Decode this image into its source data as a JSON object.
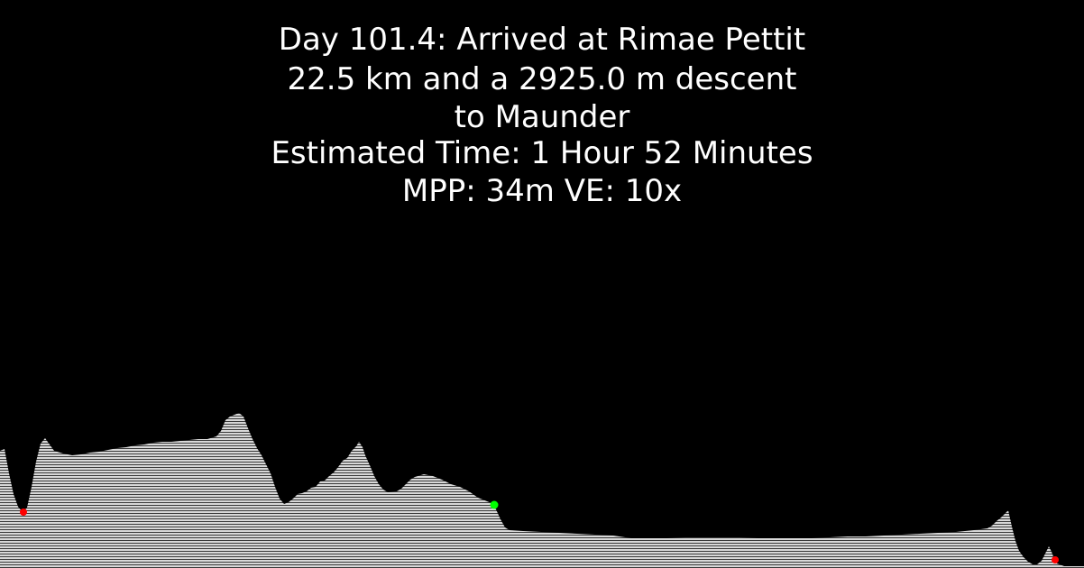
{
  "caption": {
    "day_line": "Day 101.4: Arrived at Rimae Pettit",
    "distance_line": "22.5 km and a 2925.0 m descent",
    "destination_line": "to Maunder",
    "time_line": "Estimated Time: 1 Hour 52 Minutes",
    "scale_line": "MPP: 34m VE: 10x"
  },
  "colors": {
    "background": "#000000",
    "text": "#ffffff",
    "terrain_fill": "#d8d8d8",
    "terrain_hatch": "#000000",
    "current_marker": "#00ff00",
    "endpoint_marker": "#ff0000"
  },
  "markers": [
    {
      "name": "start-marker",
      "color": "endpoint_marker"
    },
    {
      "name": "current-position-marker",
      "color": "current_marker"
    },
    {
      "name": "end-marker",
      "color": "endpoint_marker"
    }
  ]
}
